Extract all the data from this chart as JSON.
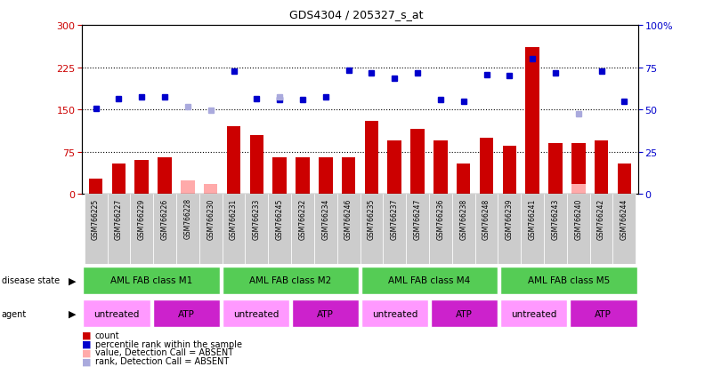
{
  "title": "GDS4304 / 205327_s_at",
  "samples": [
    "GSM766225",
    "GSM766227",
    "GSM766229",
    "GSM766226",
    "GSM766228",
    "GSM766230",
    "GSM766231",
    "GSM766233",
    "GSM766245",
    "GSM766232",
    "GSM766234",
    "GSM766246",
    "GSM766235",
    "GSM766237",
    "GSM766247",
    "GSM766236",
    "GSM766238",
    "GSM766248",
    "GSM766239",
    "GSM766241",
    "GSM766243",
    "GSM766240",
    "GSM766242",
    "GSM766244"
  ],
  "count": [
    28,
    55,
    60,
    65,
    null,
    null,
    120,
    105,
    65,
    65,
    65,
    65,
    130,
    95,
    115,
    95,
    55,
    100,
    85,
    260,
    90,
    90,
    95,
    55
  ],
  "count_absent": [
    null,
    null,
    null,
    null,
    25,
    18,
    null,
    null,
    null,
    null,
    null,
    null,
    null,
    null,
    null,
    null,
    null,
    null,
    null,
    null,
    null,
    18,
    null,
    null
  ],
  "rank": [
    152,
    170,
    172,
    172,
    null,
    null,
    218,
    170,
    168,
    168,
    172,
    220,
    215,
    205,
    215,
    168,
    165,
    212,
    210,
    240,
    215,
    null,
    218,
    165
  ],
  "rank_absent": [
    null,
    null,
    null,
    null,
    155,
    148,
    null,
    null,
    172,
    null,
    null,
    null,
    null,
    null,
    null,
    null,
    null,
    null,
    null,
    null,
    null,
    142,
    null,
    null
  ],
  "disease_state_groups": [
    {
      "label": "AML FAB class M1",
      "start": 0,
      "end": 6
    },
    {
      "label": "AML FAB class M2",
      "start": 6,
      "end": 12
    },
    {
      "label": "AML FAB class M4",
      "start": 12,
      "end": 18
    },
    {
      "label": "AML FAB class M5",
      "start": 18,
      "end": 24
    }
  ],
  "agent_groups": [
    {
      "label": "untreated",
      "start": 0,
      "end": 3,
      "color": "#ff99ff"
    },
    {
      "label": "ATP",
      "start": 3,
      "end": 6,
      "color": "#cc22cc"
    },
    {
      "label": "untreated",
      "start": 6,
      "end": 9,
      "color": "#ff99ff"
    },
    {
      "label": "ATP",
      "start": 9,
      "end": 12,
      "color": "#cc22cc"
    },
    {
      "label": "untreated",
      "start": 12,
      "end": 15,
      "color": "#ff99ff"
    },
    {
      "label": "ATP",
      "start": 15,
      "end": 18,
      "color": "#cc22cc"
    },
    {
      "label": "untreated",
      "start": 18,
      "end": 21,
      "color": "#ff99ff"
    },
    {
      "label": "ATP",
      "start": 21,
      "end": 24,
      "color": "#cc22cc"
    }
  ],
  "ylim_left": [
    0,
    300
  ],
  "ylim_right": [
    0,
    100
  ],
  "yticks_left": [
    0,
    75,
    150,
    225,
    300
  ],
  "yticks_right": [
    0,
    25,
    50,
    75,
    100
  ],
  "hlines": [
    75,
    150,
    225
  ],
  "bar_color": "#cc0000",
  "bar_absent_color": "#ffaaaa",
  "dot_color": "#0000cc",
  "dot_absent_color": "#aaaadd",
  "disease_state_color": "#55cc55",
  "label_color_left": "#cc0000",
  "label_color_right": "#0000cc",
  "bg_gray": "#cccccc"
}
